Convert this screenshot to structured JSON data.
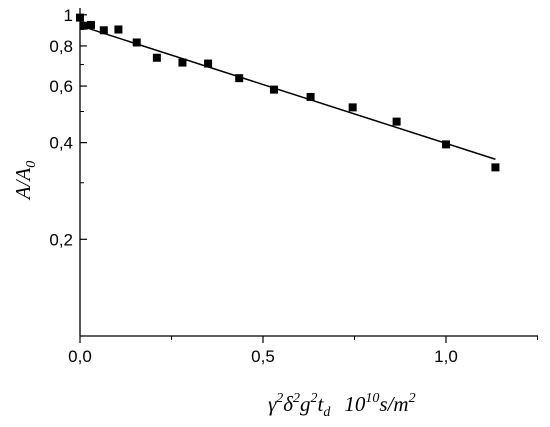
{
  "chart_data": {
    "type": "scatter",
    "xlabel": {
      "gamma": "γ",
      "gamma_exp": "2",
      "delta": "δ",
      "delta_exp": "2",
      "g": "g",
      "g_exp": "2",
      "t": "t",
      "t_sub": "d",
      "unit_base": "10",
      "unit_exp": "10",
      "unit_rest": "s/m",
      "unit_exp2": "2"
    },
    "ylabel": {
      "A": "A",
      "slash": "/",
      "A0": "A",
      "A0_sub": "0"
    },
    "xlim": [
      0.0,
      1.25
    ],
    "ylim": [
      0.1,
      1.05
    ],
    "yscale": "log",
    "x_ticks": [
      {
        "value": 0.0,
        "label": "0,0"
      },
      {
        "value": 0.5,
        "label": "0,5"
      },
      {
        "value": 1.0,
        "label": "1,0"
      }
    ],
    "y_ticks": [
      {
        "value": 1.0,
        "label": "1"
      },
      {
        "value": 0.8,
        "label": "0,8"
      },
      {
        "value": 0.6,
        "label": "0,6"
      },
      {
        "value": 0.4,
        "label": "0,4"
      },
      {
        "value": 0.2,
        "label": "0,2"
      }
    ],
    "y_minor_ticks": [
      0.9,
      0.7,
      0.5,
      0.3,
      0.1
    ],
    "points": [
      {
        "x": 0.0,
        "y": 0.98
      },
      {
        "x": 0.01,
        "y": 0.925
      },
      {
        "x": 0.03,
        "y": 0.93
      },
      {
        "x": 0.065,
        "y": 0.895
      },
      {
        "x": 0.105,
        "y": 0.9
      },
      {
        "x": 0.155,
        "y": 0.82
      },
      {
        "x": 0.21,
        "y": 0.735
      },
      {
        "x": 0.28,
        "y": 0.71
      },
      {
        "x": 0.35,
        "y": 0.705
      },
      {
        "x": 0.435,
        "y": 0.635
      },
      {
        "x": 0.53,
        "y": 0.585
      },
      {
        "x": 0.63,
        "y": 0.555
      },
      {
        "x": 0.745,
        "y": 0.515
      },
      {
        "x": 0.865,
        "y": 0.465
      },
      {
        "x": 1.0,
        "y": 0.395
      },
      {
        "x": 1.135,
        "y": 0.335
      }
    ],
    "fit_line": {
      "x": [
        0.0,
        1.135
      ],
      "y": [
        0.925,
        0.355
      ]
    },
    "grid": false,
    "legend": "none",
    "colors": {
      "marker": "#000000",
      "line": "#000000",
      "axis": "#000000"
    }
  }
}
